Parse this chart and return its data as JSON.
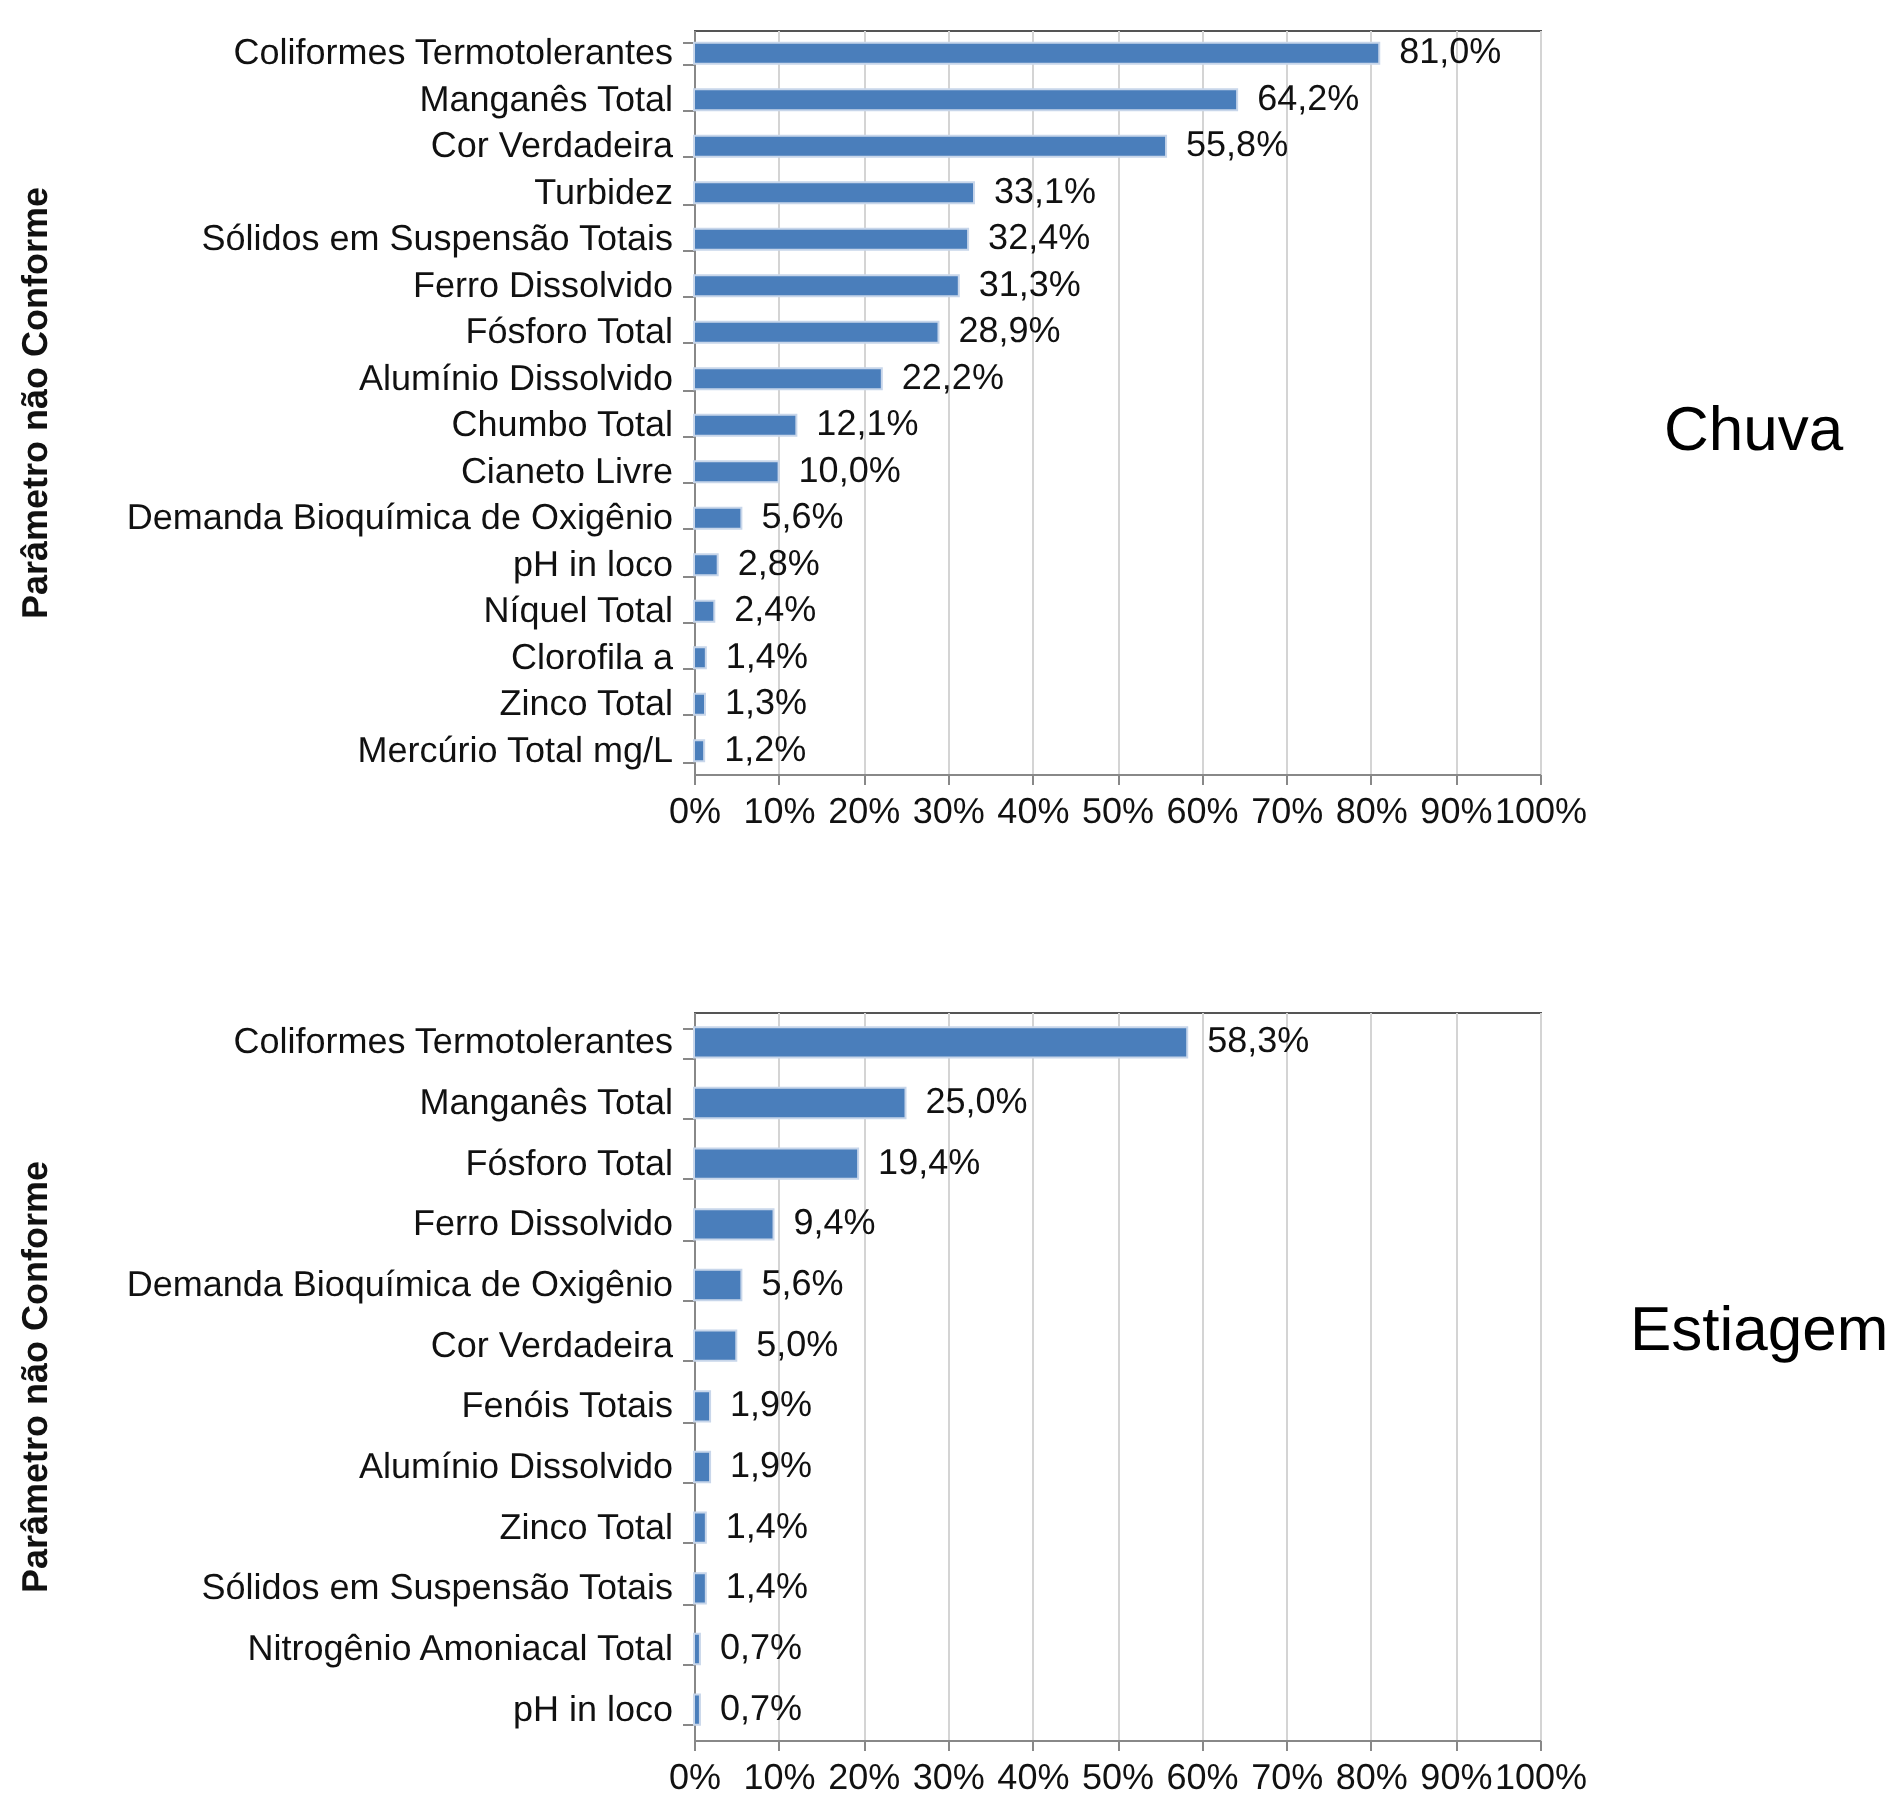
{
  "chart_data": [
    {
      "type": "bar",
      "orientation": "horizontal",
      "annotations": [
        "Chuva"
      ],
      "ylabel": "Parâmetro não Conforme",
      "color": "#4a7ebb",
      "grid": "x",
      "categories": [
        "Coliformes Termotolerantes",
        "Manganês Total",
        "Cor Verdadeira",
        "Turbidez",
        "Sólidos em Suspensão Totais",
        "Ferro Dissolvido",
        "Fósforo Total",
        "Alumínio Dissolvido",
        "Chumbo Total",
        "Cianeto Livre",
        "Demanda Bioquímica de Oxigênio",
        "pH in loco",
        "Níquel Total",
        "Clorofila a",
        "Zinco Total",
        "Mercúrio Total mg/L"
      ],
      "values": [
        81.0,
        64.2,
        55.8,
        33.1,
        32.4,
        31.3,
        28.9,
        22.2,
        12.1,
        10.0,
        5.6,
        2.8,
        2.4,
        1.4,
        1.3,
        1.2
      ],
      "value_labels": [
        "81,0%",
        "64,2%",
        "55,8%",
        "33,1%",
        "32,4%",
        "31,3%",
        "28,9%",
        "22,2%",
        "12,1%",
        "10,0%",
        "5,6%",
        "2,8%",
        "2,4%",
        "1,4%",
        "1,3%",
        "1,2%"
      ],
      "xlim": [
        0,
        100
      ],
      "xticks": [
        {
          "value": 0,
          "label": "0%"
        },
        {
          "value": 10,
          "label": "10%"
        },
        {
          "value": 20,
          "label": "20%"
        },
        {
          "value": 30,
          "label": "30%"
        },
        {
          "value": 40,
          "label": "40%"
        },
        {
          "value": 50,
          "label": "50%"
        },
        {
          "value": 60,
          "label": "60%"
        },
        {
          "value": 70,
          "label": "70%"
        },
        {
          "value": 80,
          "label": "80%"
        },
        {
          "value": 90,
          "label": "90%"
        },
        {
          "value": 100,
          "label": "100%"
        }
      ]
    },
    {
      "type": "bar",
      "orientation": "horizontal",
      "annotations": [
        "Estiagem"
      ],
      "ylabel": "Parâmetro não Conforme",
      "color": "#4a7ebb",
      "grid": "x",
      "categories": [
        "Coliformes Termotolerantes",
        "Manganês Total",
        "Fósforo Total",
        "Ferro Dissolvido",
        "Demanda Bioquímica de Oxigênio",
        "Cor Verdadeira",
        "Fenóis Totais",
        "Alumínio Dissolvido",
        "Zinco Total",
        "Sólidos em Suspensão Totais",
        "Nitrogênio Amoniacal Total",
        "pH in loco"
      ],
      "values": [
        58.3,
        25.0,
        19.4,
        9.4,
        5.6,
        5.0,
        1.9,
        1.9,
        1.4,
        1.4,
        0.7,
        0.7
      ],
      "value_labels": [
        "58,3%",
        "25,0%",
        "19,4%",
        "9,4%",
        "5,6%",
        "5,0%",
        "1,9%",
        "1,9%",
        "1,4%",
        "1,4%",
        "0,7%",
        "0,7%"
      ],
      "xlim": [
        0,
        100
      ],
      "xticks": [
        {
          "value": 0,
          "label": "0%"
        },
        {
          "value": 10,
          "label": "10%"
        },
        {
          "value": 20,
          "label": "20%"
        },
        {
          "value": 30,
          "label": "30%"
        },
        {
          "value": 40,
          "label": "40%"
        },
        {
          "value": 50,
          "label": "50%"
        },
        {
          "value": 60,
          "label": "60%"
        },
        {
          "value": 70,
          "label": "70%"
        },
        {
          "value": 80,
          "label": "80%"
        },
        {
          "value": 90,
          "label": "90%"
        },
        {
          "value": 100,
          "label": "100%"
        }
      ]
    }
  ]
}
